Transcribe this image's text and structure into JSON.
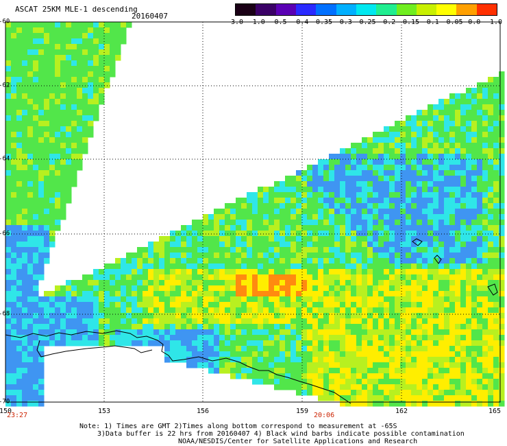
{
  "header": {
    "title": "ASCAT 25KM MLE-1 descending",
    "date": "20160407"
  },
  "colorbar": {
    "labels": [
      "-3.0",
      "-1.0",
      "-0.5",
      "-0.4",
      "-0.35",
      "-0.3",
      "-0.25",
      "-0.2",
      "-0.15",
      "-0.1",
      "-0.05",
      "0.0",
      "1.0"
    ],
    "colors": [
      "#1a0016",
      "#3a0066",
      "#5a00b4",
      "#2a2aff",
      "#0070ff",
      "#00b0ff",
      "#00e8f0",
      "#20ee90",
      "#70ee20",
      "#c8f000",
      "#ffff00",
      "#ffa000",
      "#ff3000"
    ]
  },
  "map": {
    "y_ticks": [
      "-60",
      "-62",
      "-64",
      "-66",
      "-68",
      "-70"
    ],
    "x_ticks": [
      "150",
      "153",
      "156",
      "159",
      "162",
      "165"
    ],
    "time_left": "23:27",
    "time_mid": "20:06",
    "palette": {
      "ocean_blue": "#3f95f2",
      "ocean_cyan": "#2fe6e8",
      "green": "#52e64a",
      "yellow_green": "#b8f020",
      "yellow": "#ffee00",
      "orange": "#ff8a10",
      "coast": "#000000"
    }
  },
  "notes": {
    "line1": "Note: 1) Times are GMT 2)Times along bottom correspond to measurement at -65S",
    "line2": "3)Data buffer is 22 hrs from 20160407 4) Black wind barbs indicate possible contamination",
    "line3": "NOAA/NESDIS/Center for Satellite Applications and Research"
  }
}
